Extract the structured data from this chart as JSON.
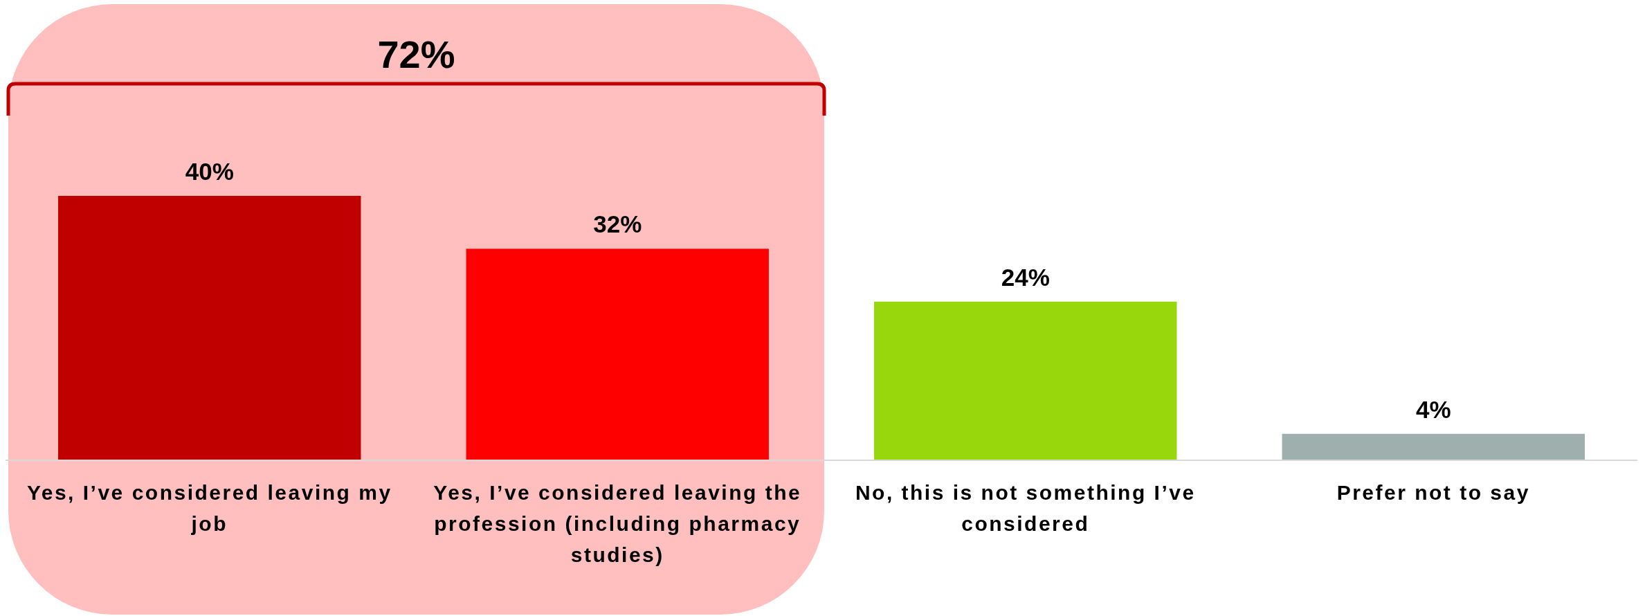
{
  "chart_data": {
    "type": "bar",
    "categories": [
      "Yes, I’ve considered leaving my job",
      "Yes, I’ve considered leaving the profession (including pharmacy studies)",
      "No, this is not something I’ve considered",
      "Prefer not to say"
    ],
    "values": [
      40,
      32,
      24,
      4
    ],
    "colors": [
      "#c00000",
      "#ff0000",
      "#97d70b",
      "#9eafae"
    ],
    "value_labels": [
      "40%",
      "32%",
      "24%",
      "4%"
    ],
    "tick_labels": "x",
    "bands": [
      {
        "axis": "x",
        "from": "Yes, I’ve considered leaving my job",
        "to": "Yes, I’ve considered leaving the profession (including pharmacy studies)",
        "label": "72%",
        "color": "#ffbfbf"
      }
    ]
  }
}
